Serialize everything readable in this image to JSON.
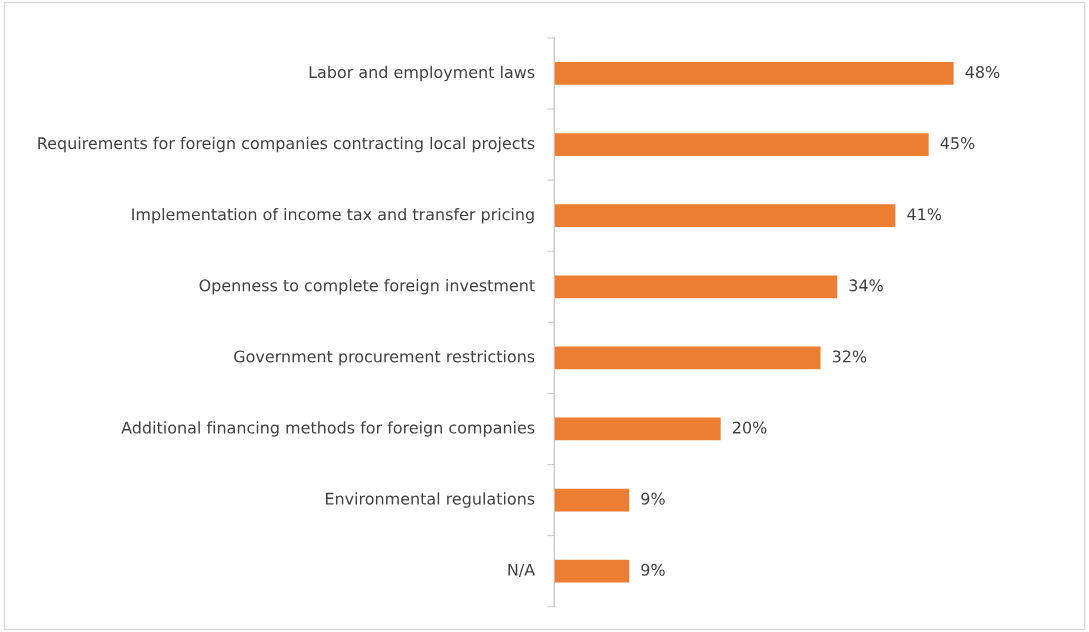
{
  "chart_data": {
    "type": "bar",
    "orientation": "horizontal",
    "categories": [
      "Labor and employment laws",
      "Requirements for foreign companies contracting local projects",
      "Implementation of income tax and transfer pricing",
      "Openness to complete foreign investment",
      "Government procurement restrictions",
      "Additional financing methods for foreign companies",
      "Environmental regulations",
      "N/A"
    ],
    "values": [
      48,
      45,
      41,
      34,
      32,
      20,
      9,
      9
    ],
    "value_labels": [
      "48%",
      "45%",
      "41%",
      "34%",
      "32%",
      "20%",
      "9%",
      "9%"
    ],
    "color": "#ed7d31"
  }
}
